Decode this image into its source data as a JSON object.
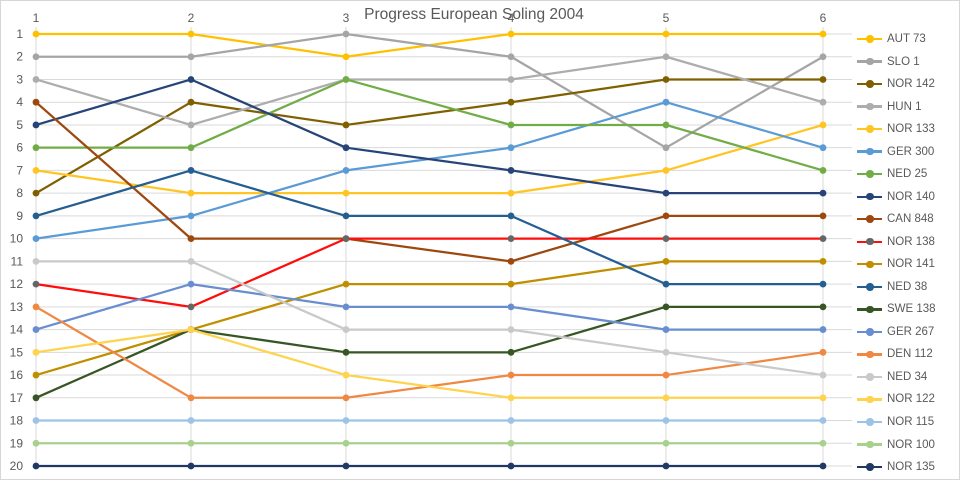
{
  "title": "Progress European Soling 2004",
  "x_axis": {
    "labels": [
      "1",
      "2",
      "3",
      "4",
      "5",
      "6"
    ]
  },
  "y_axis": {
    "labels": [
      "1",
      "2",
      "3",
      "4",
      "5",
      "6",
      "7",
      "8",
      "9",
      "10",
      "11",
      "12",
      "13",
      "14",
      "15",
      "16",
      "17",
      "18",
      "19",
      "20"
    ]
  },
  "colors": {
    "background": "#FFFFFF",
    "border": "#D6D6D6",
    "grid": "#D9D9D9",
    "axis_text": "#595959",
    "title_text": "#595959",
    "legend_text": "#595959"
  },
  "legend": {
    "position": "right",
    "items": [
      "AUT 73",
      "SLO 1",
      "NOR 142",
      "HUN 1",
      "NOR 133",
      "GER 300",
      "NED 25",
      "NOR 140",
      "CAN 848",
      "NOR 138",
      "NOR 141",
      "NED 38",
      "SWE 138",
      "GER 267",
      "DEN 112",
      "NED 34",
      "NOR 122",
      "NOR 115",
      "NOR 100",
      "NOR 135"
    ]
  },
  "chart_data": {
    "type": "line",
    "subtype": "bump-rank-progression",
    "title": "Progress European Soling 2004",
    "xlabel": "",
    "ylabel": "",
    "x": [
      1,
      2,
      3,
      4,
      5,
      6
    ],
    "ylim": [
      1,
      20
    ],
    "y_inverted": true,
    "grid": true,
    "legend_position": "right",
    "series": [
      {
        "name": "AUT 73",
        "color": "#FFC000",
        "values": [
          1,
          1,
          2,
          1,
          1,
          1
        ]
      },
      {
        "name": "SLO 1",
        "color": "#A5A5A5",
        "values": [
          2,
          2,
          1,
          2,
          6,
          2
        ]
      },
      {
        "name": "NOR 142",
        "color": "#7F6000",
        "values": [
          8,
          4,
          5,
          4,
          3,
          3
        ]
      },
      {
        "name": "HUN 1",
        "color": "#ADADAD",
        "values": [
          3,
          5,
          3,
          3,
          2,
          4
        ]
      },
      {
        "name": "NOR 133",
        "color": "#FFC524",
        "values": [
          7,
          8,
          8,
          8,
          7,
          5
        ]
      },
      {
        "name": "GER 300",
        "color": "#5B9BD5",
        "values": [
          10,
          9,
          7,
          6,
          4,
          6
        ]
      },
      {
        "name": "NED 25",
        "color": "#70AD47",
        "values": [
          6,
          6,
          3,
          5,
          5,
          7
        ]
      },
      {
        "name": "NOR 140",
        "color": "#264478",
        "values": [
          5,
          3,
          6,
          7,
          8,
          8
        ]
      },
      {
        "name": "CAN 848",
        "color": "#9E480E",
        "values": [
          4,
          10,
          10,
          11,
          9,
          9
        ]
      },
      {
        "name": "NOR 138",
        "color": "#FF0D0D",
        "marker_color": "#666666",
        "values": [
          12,
          13,
          10,
          10,
          10,
          10
        ]
      },
      {
        "name": "NOR 141",
        "color": "#BF8F00",
        "values": [
          16,
          14,
          12,
          12,
          11,
          11
        ]
      },
      {
        "name": "NED 38",
        "color": "#255E91",
        "values": [
          9,
          7,
          9,
          9,
          12,
          12
        ]
      },
      {
        "name": "SWE 138",
        "color": "#375623",
        "values": [
          17,
          14,
          15,
          15,
          13,
          13
        ]
      },
      {
        "name": "GER 267",
        "color": "#698ED0",
        "values": [
          14,
          12,
          13,
          13,
          14,
          14
        ]
      },
      {
        "name": "DEN 112",
        "color": "#EE8843",
        "values": [
          13,
          17,
          17,
          16,
          16,
          15
        ]
      },
      {
        "name": "NED 34",
        "color": "#C9C9C9",
        "values": [
          11,
          11,
          14,
          14,
          15,
          16
        ]
      },
      {
        "name": "NOR 122",
        "color": "#FFD34D",
        "values": [
          15,
          14,
          16,
          17,
          17,
          17
        ]
      },
      {
        "name": "NOR 115",
        "color": "#9DC3E6",
        "values": [
          18,
          18,
          18,
          18,
          18,
          18
        ]
      },
      {
        "name": "NOR 100",
        "color": "#A9D18E",
        "values": [
          19,
          19,
          19,
          19,
          19,
          19
        ]
      },
      {
        "name": "NOR 135",
        "color": "#203864",
        "values": [
          20,
          20,
          20,
          20,
          20,
          20
        ]
      }
    ]
  }
}
